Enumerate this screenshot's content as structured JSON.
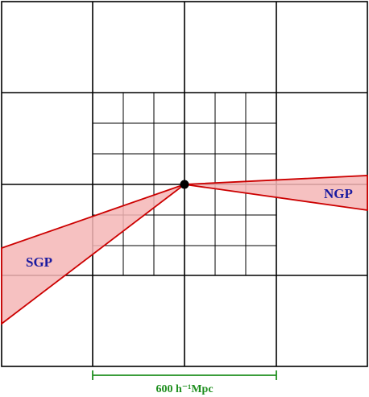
{
  "regions": {
    "ngp": {
      "label": "NGP"
    },
    "sgp": {
      "label": "SGP"
    }
  },
  "scale_bar": {
    "label": "600 h⁻¹Mpc"
  },
  "colors": {
    "grid": "#000000",
    "wedge_fill": "#f4b6b6",
    "wedge_stroke": "#cc0000",
    "region_label": "#1a1aa0",
    "scale": "#1f8f1f",
    "observer": "#000000"
  },
  "icons": {
    "observer": "observer-dot-icon"
  }
}
